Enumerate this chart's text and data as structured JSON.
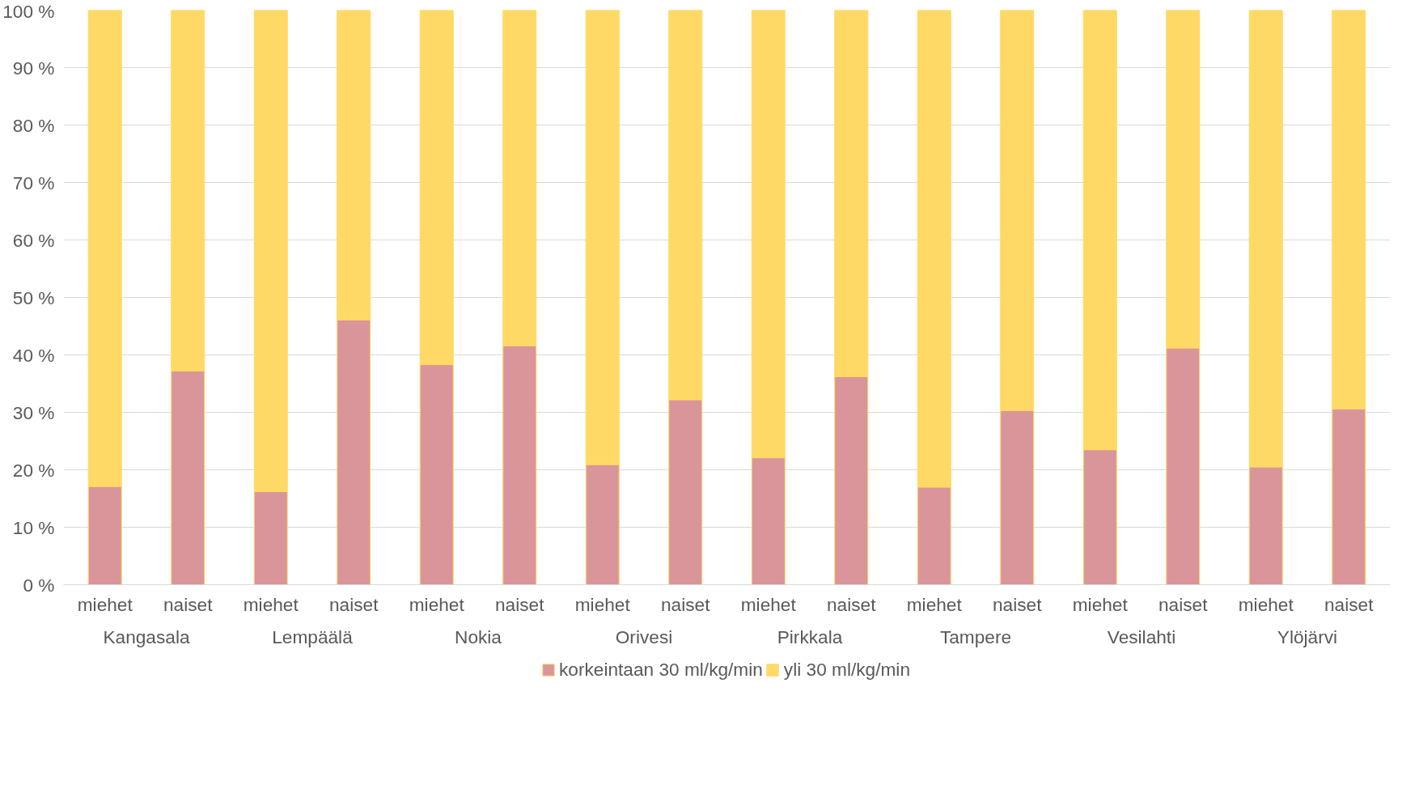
{
  "chart_data": {
    "type": "bar",
    "stacked": true,
    "categories": [
      "miehet",
      "naiset",
      "miehet",
      "naiset",
      "miehet",
      "naiset",
      "miehet",
      "naiset",
      "miehet",
      "naiset",
      "miehet",
      "naiset",
      "miehet",
      "naiset",
      "miehet",
      "naiset"
    ],
    "annotations": [
      "Kangasala",
      "Lempäälä",
      "Nokia",
      "Orivesi",
      "Pirkkala",
      "Tampere",
      "Vesilahti",
      "Ylöjärvi"
    ],
    "series": [
      {
        "name": "korkeintaan 30 ml/kg/min",
        "color": "#d9959a",
        "values": [
          17.1,
          37.2,
          16.2,
          46.1,
          38.3,
          41.6,
          20.9,
          32.2,
          22.1,
          36.2,
          17.0,
          30.3,
          23.5,
          41.2,
          20.5,
          30.6
        ]
      },
      {
        "name": "yli 30 ml/kg/min",
        "color": "#ffd966",
        "values": [
          82.9,
          62.8,
          83.8,
          53.9,
          61.7,
          58.4,
          79.1,
          67.8,
          77.9,
          63.8,
          83.0,
          69.7,
          76.5,
          58.8,
          79.5,
          69.4
        ]
      }
    ],
    "ylim": [
      0,
      100
    ],
    "yticks": [
      {
        "value": 0,
        "label": "0 %"
      },
      {
        "value": 10,
        "label": "10 %"
      },
      {
        "value": 20,
        "label": "20 %"
      },
      {
        "value": 30,
        "label": "30 %"
      },
      {
        "value": 40,
        "label": "40 %"
      },
      {
        "value": 50,
        "label": "50 %"
      },
      {
        "value": 60,
        "label": "60 %"
      },
      {
        "value": 70,
        "label": "70 %"
      },
      {
        "value": 80,
        "label": "80 %"
      },
      {
        "value": 90,
        "label": "90 %"
      },
      {
        "value": 100,
        "label": "100 %"
      }
    ],
    "grid": "y",
    "legend": "bottom"
  }
}
